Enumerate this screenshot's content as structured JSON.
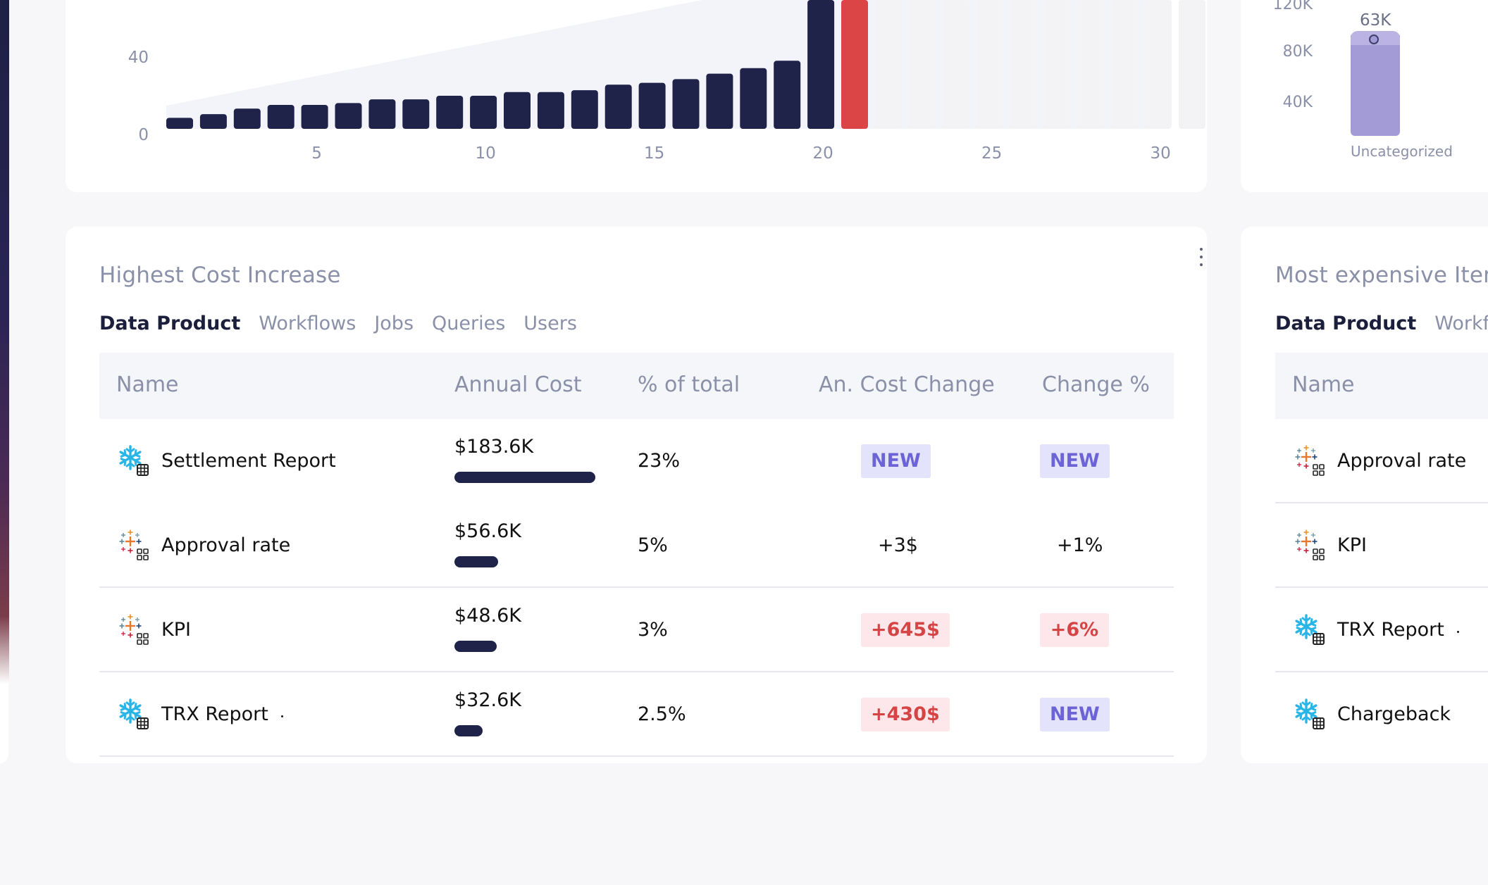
{
  "daily_chart": {
    "y_ticks": [
      "40",
      "0"
    ],
    "x_ticks": [
      "5",
      "10",
      "15",
      "20",
      "25",
      "30"
    ],
    "chart_data": {
      "type": "bar",
      "categories": [
        1,
        2,
        3,
        4,
        5,
        6,
        7,
        8,
        9,
        10,
        11,
        12,
        13,
        14,
        15,
        16,
        17,
        18,
        19,
        20,
        21,
        22,
        23,
        24,
        25,
        26,
        27,
        28,
        29,
        30,
        31
      ],
      "values": [
        6,
        8,
        11,
        13,
        13,
        14,
        16,
        16,
        18,
        18,
        20,
        20,
        21,
        24,
        25,
        27,
        30,
        33,
        37,
        70,
        70,
        0,
        0,
        0,
        0,
        0,
        0,
        0,
        0,
        0,
        0
      ],
      "highlight_index": 20,
      "ylim": [
        0,
        70
      ],
      "colors": {
        "actual": "#1f2349",
        "highlight": "#dc4545",
        "future": "#f3f3f5",
        "trend": "#f3f4f9"
      }
    }
  },
  "category_chart": {
    "y_ticks": [
      "120K",
      "80K",
      "40K"
    ],
    "value_label": "63K",
    "category": "Uncategorized",
    "chart_data": {
      "type": "bar",
      "categories": [
        "Uncategorized"
      ],
      "values": [
        63000
      ],
      "ylim": [
        0,
        120000
      ]
    }
  },
  "cost_increase": {
    "title": "Highest Cost  Increase",
    "tabs": [
      "Data Product",
      "Workflows",
      "Jobs",
      "Queries",
      "Users"
    ],
    "active_tab": "Data Product",
    "columns": [
      "Name",
      "Annual Cost",
      "% of total",
      "An. Cost Change",
      "Change %"
    ],
    "rows": [
      {
        "name": "Settlement Report",
        "icon": "snowflake",
        "cost": "$183.6K",
        "cost_fraction": 1.0,
        "pct": "23%",
        "change": "NEW",
        "change_style": "new",
        "change_pct": "NEW",
        "change_pct_style": "new"
      },
      {
        "name": "Approval rate",
        "icon": "tableau",
        "cost": "$56.6K",
        "cost_fraction": 0.31,
        "pct": "5%",
        "change": "+3$",
        "change_style": "plain",
        "change_pct": "+1%",
        "change_pct_style": "plain"
      },
      {
        "name": "KPI",
        "icon": "tableau",
        "cost": "$48.6K",
        "cost_fraction": 0.3,
        "pct": "3%",
        "change": "+645$",
        "change_style": "red",
        "change_pct": "+6%",
        "change_pct_style": "red"
      },
      {
        "name": "TRX Report",
        "icon": "snowflake",
        "cost": "$32.6K",
        "cost_fraction": 0.2,
        "pct": "2.5%",
        "change": "+430$",
        "change_style": "red",
        "change_pct": "NEW",
        "change_pct_style": "new"
      }
    ]
  },
  "most_expensive": {
    "title": "Most expensive Iter",
    "tabs": [
      "Data Product",
      "Workflo"
    ],
    "active_tab": "Data Product",
    "columns": [
      "Name"
    ],
    "rows": [
      {
        "name": "Approval rate",
        "icon": "tableau"
      },
      {
        "name": "KPI",
        "icon": "tableau"
      },
      {
        "name": "TRX Report",
        "icon": "snowflake"
      },
      {
        "name": "Chargeback",
        "icon": "snowflake"
      }
    ]
  }
}
